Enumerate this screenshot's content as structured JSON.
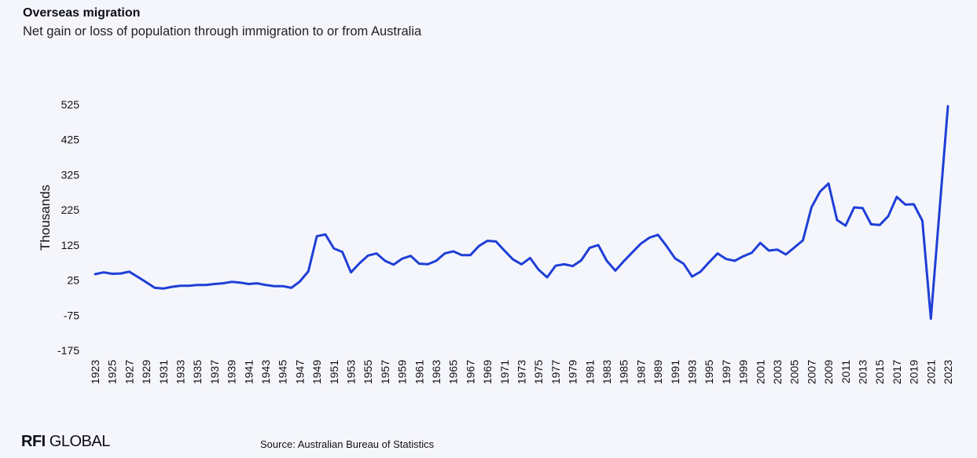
{
  "header": {
    "title": "Overseas migration",
    "subtitle": "Net gain or loss of population through immigration to or from Australia"
  },
  "footer": {
    "logo_bold": "RFI",
    "logo_rest": " GLOBAL",
    "source": "Source: Australian Bureau of Statistics"
  },
  "colors": {
    "line": "#1f3fd6",
    "background": "#f5f6fc"
  },
  "chart_data": {
    "type": "line",
    "title": "Overseas migration",
    "subtitle": "Net gain or loss of population through immigration to or from Australia",
    "xlabel": "",
    "ylabel": "Thousands",
    "ylim": [
      -175,
      525
    ],
    "yticks": [
      525,
      425,
      325,
      225,
      125,
      25,
      -75,
      -175
    ],
    "xticks": [
      1923,
      1925,
      1927,
      1929,
      1931,
      1933,
      1935,
      1937,
      1939,
      1941,
      1943,
      1945,
      1947,
      1949,
      1951,
      1953,
      1955,
      1957,
      1959,
      1961,
      1963,
      1965,
      1967,
      1969,
      1971,
      1973,
      1975,
      1977,
      1979,
      1981,
      1983,
      1985,
      1987,
      1989,
      1991,
      1993,
      1995,
      1997,
      1999,
      2001,
      2003,
      2005,
      2007,
      2009,
      2011,
      2013,
      2015,
      2017,
      2019,
      2021,
      2023
    ],
    "grid": false,
    "legend": "none",
    "series": [
      {
        "x": [
          1923,
          1924,
          1925,
          1926,
          1927,
          1928,
          1929,
          1930,
          1931,
          1932,
          1933,
          1934,
          1935,
          1936,
          1937,
          1938,
          1939,
          1940,
          1941,
          1942,
          1943,
          1944,
          1945,
          1946,
          1947,
          1948,
          1949,
          1950,
          1951,
          1952,
          1953,
          1954,
          1955,
          1956,
          1957,
          1958,
          1959,
          1960,
          1961,
          1962,
          1963,
          1964,
          1965,
          1966,
          1967,
          1968,
          1969,
          1970,
          1971,
          1972,
          1973,
          1974,
          1975,
          1976,
          1977,
          1978,
          1979,
          1980,
          1981,
          1982,
          1983,
          1984,
          1985,
          1986,
          1987,
          1988,
          1989,
          1990,
          1991,
          1992,
          1993,
          1994,
          1995,
          1996,
          1997,
          1998,
          1999,
          2000,
          2001,
          2002,
          2003,
          2004,
          2005,
          2006,
          2007,
          2008,
          2009,
          2010,
          2011,
          2012,
          2013,
          2014,
          2015,
          2016,
          2017,
          2018,
          2019,
          2020,
          2021,
          2022,
          2023
        ],
        "values": [
          42,
          47,
          43,
          44,
          49,
          34,
          19,
          3,
          1,
          6,
          9,
          9,
          11,
          11,
          14,
          16,
          20,
          18,
          14,
          16,
          11,
          8,
          8,
          3,
          21,
          50,
          150,
          155,
          115,
          105,
          47,
          73,
          95,
          101,
          80,
          69,
          86,
          94,
          72,
          70,
          80,
          101,
          107,
          96,
          96,
          122,
          137,
          135,
          109,
          84,
          70,
          88,
          55,
          33,
          66,
          70,
          65,
          81,
          117,
          125,
          80,
          52,
          79,
          104,
          129,
          146,
          154,
          122,
          87,
          72,
          35,
          49,
          76,
          101,
          85,
          80,
          93,
          103,
          131,
          109,
          112,
          98,
          118,
          138,
          232,
          277,
          300,
          196,
          180,
          232,
          230,
          184,
          182,
          207,
          262,
          240,
          241,
          194,
          -85,
          220,
          520
        ]
      }
    ]
  }
}
